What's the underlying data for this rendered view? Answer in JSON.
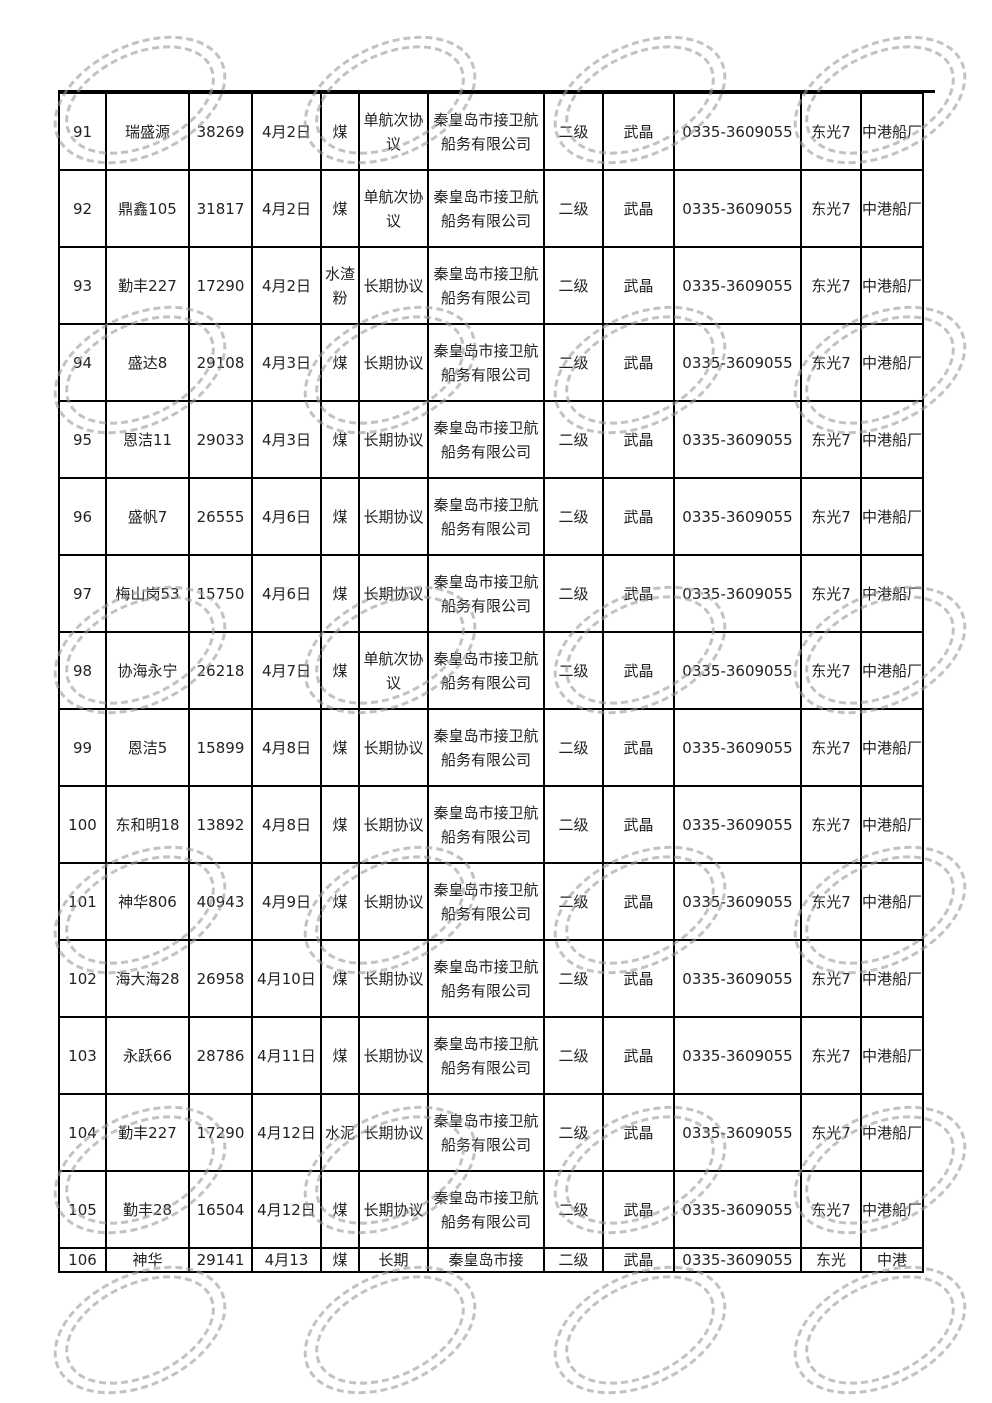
{
  "watermark_text": "秦皇岛市接卫航船务有限公司",
  "rows": [
    {
      "no": "91",
      "ship": "瑞盛源",
      "tonnage": "38269",
      "date": "4月2日",
      "cargo": "煤",
      "agreement": "单航次协议",
      "company": "秦皇岛市接卫航船务有限公司",
      "level": "二级",
      "person": "武晶",
      "phone": "0335-3609055",
      "berth": "东光7",
      "yard": "中港船厂"
    },
    {
      "no": "92",
      "ship": "鼎鑫105",
      "tonnage": "31817",
      "date": "4月2日",
      "cargo": "煤",
      "agreement": "单航次协议",
      "company": "秦皇岛市接卫航船务有限公司",
      "level": "二级",
      "person": "武晶",
      "phone": "0335-3609055",
      "berth": "东光7",
      "yard": "中港船厂"
    },
    {
      "no": "93",
      "ship": "勤丰227",
      "tonnage": "17290",
      "date": "4月2日",
      "cargo": "水渣粉",
      "agreement": "长期协议",
      "company": "秦皇岛市接卫航船务有限公司",
      "level": "二级",
      "person": "武晶",
      "phone": "0335-3609055",
      "berth": "东光7",
      "yard": "中港船厂"
    },
    {
      "no": "94",
      "ship": "盛达8",
      "tonnage": "29108",
      "date": "4月3日",
      "cargo": "煤",
      "agreement": "长期协议",
      "company": "秦皇岛市接卫航船务有限公司",
      "level": "二级",
      "person": "武晶",
      "phone": "0335-3609055",
      "berth": "东光7",
      "yard": "中港船厂"
    },
    {
      "no": "95",
      "ship": "恩洁11",
      "tonnage": "29033",
      "date": "4月3日",
      "cargo": "煤",
      "agreement": "长期协议",
      "company": "秦皇岛市接卫航船务有限公司",
      "level": "二级",
      "person": "武晶",
      "phone": "0335-3609055",
      "berth": "东光7",
      "yard": "中港船厂"
    },
    {
      "no": "96",
      "ship": "盛帆7",
      "tonnage": "26555",
      "date": "4月6日",
      "cargo": "煤",
      "agreement": "长期协议",
      "company": "秦皇岛市接卫航船务有限公司",
      "level": "二级",
      "person": "武晶",
      "phone": "0335-3609055",
      "berth": "东光7",
      "yard": "中港船厂"
    },
    {
      "no": "97",
      "ship": "梅山岗53",
      "tonnage": "15750",
      "date": "4月6日",
      "cargo": "煤",
      "agreement": "长期协议",
      "company": "秦皇岛市接卫航船务有限公司",
      "level": "二级",
      "person": "武晶",
      "phone": "0335-3609055",
      "berth": "东光7",
      "yard": "中港船厂"
    },
    {
      "no": "98",
      "ship": "协海永宁",
      "tonnage": "26218",
      "date": "4月7日",
      "cargo": "煤",
      "agreement": "单航次协议",
      "company": "秦皇岛市接卫航船务有限公司",
      "level": "二级",
      "person": "武晶",
      "phone": "0335-3609055",
      "berth": "东光7",
      "yard": "中港船厂"
    },
    {
      "no": "99",
      "ship": "恩洁5",
      "tonnage": "15899",
      "date": "4月8日",
      "cargo": "煤",
      "agreement": "长期协议",
      "company": "秦皇岛市接卫航船务有限公司",
      "level": "二级",
      "person": "武晶",
      "phone": "0335-3609055",
      "berth": "东光7",
      "yard": "中港船厂"
    },
    {
      "no": "100",
      "ship": "东和明18",
      "tonnage": "13892",
      "date": "4月8日",
      "cargo": "煤",
      "agreement": "长期协议",
      "company": "秦皇岛市接卫航船务有限公司",
      "level": "二级",
      "person": "武晶",
      "phone": "0335-3609055",
      "berth": "东光7",
      "yard": "中港船厂"
    },
    {
      "no": "101",
      "ship": "神华806",
      "tonnage": "40943",
      "date": "4月9日",
      "cargo": "煤",
      "agreement": "长期协议",
      "company": "秦皇岛市接卫航船务有限公司",
      "level": "二级",
      "person": "武晶",
      "phone": "0335-3609055",
      "berth": "东光7",
      "yard": "中港船厂"
    },
    {
      "no": "102",
      "ship": "海大海28",
      "tonnage": "26958",
      "date": "4月10日",
      "cargo": "煤",
      "agreement": "长期协议",
      "company": "秦皇岛市接卫航船务有限公司",
      "level": "二级",
      "person": "武晶",
      "phone": "0335-3609055",
      "berth": "东光7",
      "yard": "中港船厂"
    },
    {
      "no": "103",
      "ship": "永跃66",
      "tonnage": "28786",
      "date": "4月11日",
      "cargo": "煤",
      "agreement": "长期协议",
      "company": "秦皇岛市接卫航船务有限公司",
      "level": "二级",
      "person": "武晶",
      "phone": "0335-3609055",
      "berth": "东光7",
      "yard": "中港船厂"
    },
    {
      "no": "104",
      "ship": "勤丰227",
      "tonnage": "17290",
      "date": "4月12日",
      "cargo": "水泥",
      "agreement": "长期协议",
      "company": "秦皇岛市接卫航船务有限公司",
      "level": "二级",
      "person": "武晶",
      "phone": "0335-3609055",
      "berth": "东光7",
      "yard": "中港船厂"
    },
    {
      "no": "105",
      "ship": "勤丰28",
      "tonnage": "16504",
      "date": "4月12日",
      "cargo": "煤",
      "agreement": "长期协议",
      "company": "秦皇岛市接卫航船务有限公司",
      "level": "二级",
      "person": "武晶",
      "phone": "0335-3609055",
      "berth": "东光7",
      "yard": "中港船厂"
    }
  ],
  "last_row": {
    "no": "106",
    "ship": "神华",
    "tonnage": "29141",
    "date": "4月13",
    "cargo": "煤",
    "agreement": "长期",
    "company": "秦皇岛市接",
    "level": "二级",
    "person": "武晶",
    "phone": "0335-3609055",
    "berth": "东光",
    "yard": "中港"
  }
}
